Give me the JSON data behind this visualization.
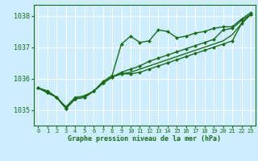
{
  "bg_color": "#cceeff",
  "grid_color": "#ffffff",
  "line_color": "#1a6b1a",
  "marker_color": "#1a6b1a",
  "title": "Graphe pression niveau de la mer (hPa)",
  "xlim": [
    -0.5,
    23.5
  ],
  "ylim": [
    1034.5,
    1038.35
  ],
  "yticks": [
    1035,
    1036,
    1037,
    1038
  ],
  "xticks": [
    0,
    1,
    2,
    3,
    4,
    5,
    6,
    7,
    8,
    9,
    10,
    11,
    12,
    13,
    14,
    15,
    16,
    17,
    18,
    19,
    20,
    21,
    22,
    23
  ],
  "line1": {
    "x": [
      0,
      1,
      2,
      3,
      4,
      5,
      6,
      7,
      8,
      9,
      10,
      11,
      12,
      13,
      14,
      15,
      16,
      17,
      18,
      19,
      20,
      21,
      22,
      23
    ],
    "y": [
      1035.7,
      1035.6,
      1035.4,
      1035.1,
      1035.4,
      1035.45,
      1035.6,
      1035.9,
      1036.1,
      1037.1,
      1037.35,
      1037.15,
      1037.2,
      1037.55,
      1037.5,
      1037.3,
      1037.35,
      1037.45,
      1037.5,
      1037.6,
      1037.65,
      1037.65,
      1037.9,
      1038.1
    ],
    "marker": "D",
    "markersize": 2.0,
    "linewidth": 1.0
  },
  "line2": {
    "x": [
      0,
      1,
      2,
      3,
      4,
      5,
      6,
      7,
      8,
      9,
      10,
      11,
      12,
      13,
      14,
      15,
      16,
      17,
      18,
      19,
      20,
      21,
      22,
      23
    ],
    "y": [
      1035.7,
      1035.55,
      1035.4,
      1035.05,
      1035.35,
      1035.4,
      1035.6,
      1035.85,
      1036.05,
      1036.15,
      1036.15,
      1036.2,
      1036.3,
      1036.4,
      1036.5,
      1036.6,
      1036.7,
      1036.8,
      1036.9,
      1037.0,
      1037.1,
      1037.2,
      1037.75,
      1038.05
    ],
    "marker": "D",
    "markersize": 2.0,
    "linewidth": 1.0
  },
  "line3": {
    "x": [
      0,
      1,
      2,
      3,
      4,
      5,
      6,
      7,
      8,
      9,
      10,
      11,
      12,
      13,
      14,
      15,
      16,
      17,
      18,
      19,
      20,
      21,
      22,
      23
    ],
    "y": [
      1035.7,
      1035.55,
      1035.4,
      1035.05,
      1035.35,
      1035.4,
      1035.6,
      1035.85,
      1036.05,
      1036.2,
      1036.3,
      1036.4,
      1036.55,
      1036.65,
      1036.75,
      1036.85,
      1036.95,
      1037.05,
      1037.15,
      1037.25,
      1037.55,
      1037.6,
      1037.85,
      1038.05
    ],
    "marker": "D",
    "markersize": 2.0,
    "linewidth": 1.0
  },
  "line4": {
    "x": [
      0,
      1,
      2,
      3,
      4,
      5,
      6,
      7,
      8,
      9,
      10,
      11,
      12,
      13,
      14,
      15,
      16,
      17,
      18,
      19,
      20,
      21,
      22,
      23
    ],
    "y": [
      1035.7,
      1035.6,
      1035.4,
      1035.05,
      1035.35,
      1035.4,
      1035.6,
      1035.85,
      1036.05,
      1036.15,
      1036.2,
      1036.3,
      1036.4,
      1036.5,
      1036.6,
      1036.7,
      1036.8,
      1036.9,
      1037.0,
      1037.1,
      1037.2,
      1037.4,
      1037.75,
      1038.05
    ],
    "marker": null,
    "markersize": 0,
    "linewidth": 1.0
  }
}
